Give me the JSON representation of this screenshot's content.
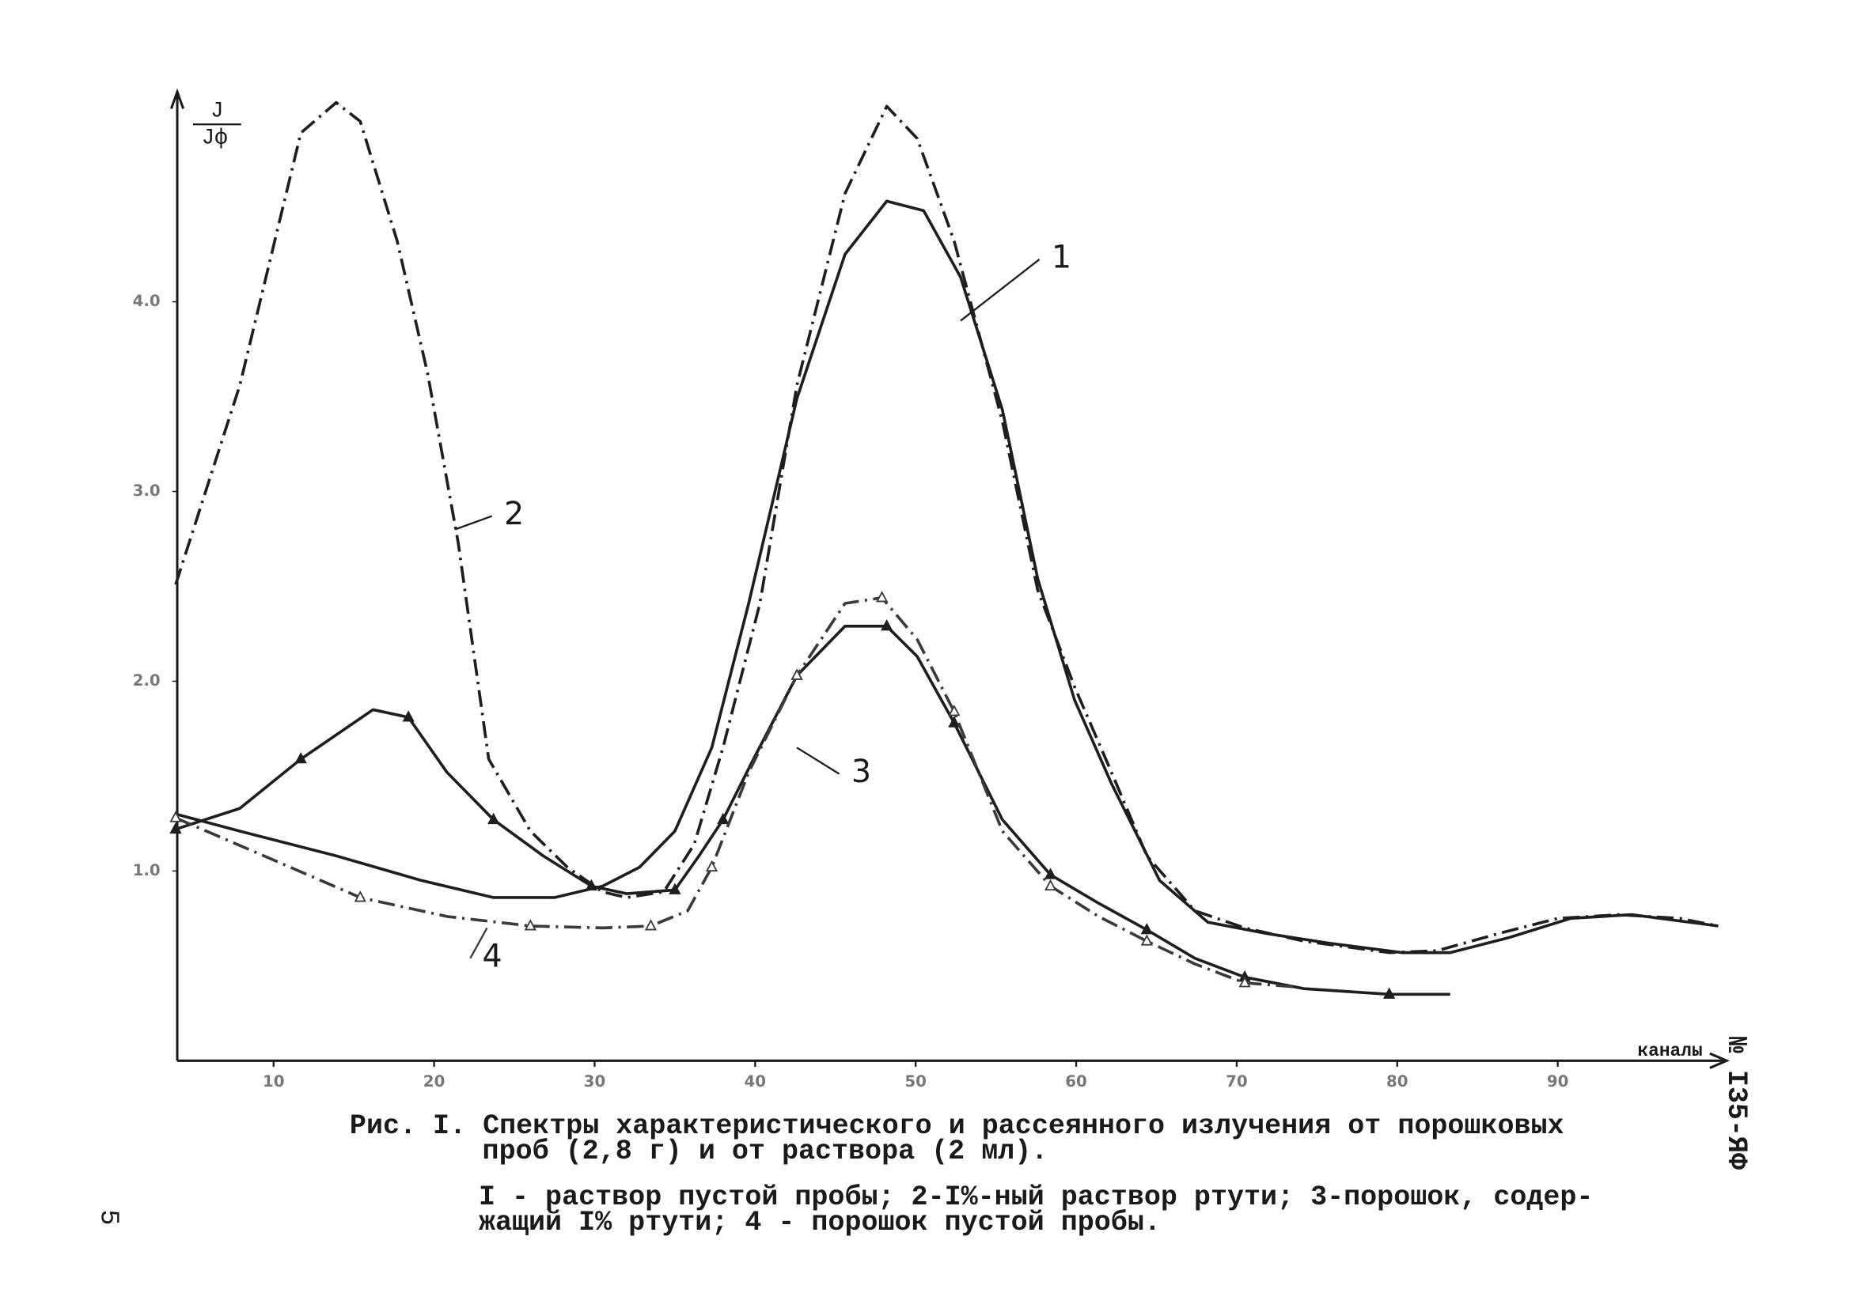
{
  "chart_data": {
    "type": "line",
    "y_label": {
      "numerator": "J",
      "denominator": "Jф"
    },
    "x_label": "каналы",
    "xlim": [
      4,
      100
    ],
    "ylim": [
      0,
      5.1
    ],
    "xticks": [
      10,
      20,
      30,
      40,
      50,
      60,
      70,
      80,
      90
    ],
    "yticks": [
      {
        "value": 1,
        "label": "1.0"
      },
      {
        "value": 2,
        "label": "2.0"
      },
      {
        "value": 3,
        "label": "3.0"
      },
      {
        "value": 4,
        "label": "4.0"
      }
    ],
    "grid": false,
    "series": [
      {
        "name": "1",
        "color": "#1e1e1e",
        "line_style": "solid",
        "marker": "none",
        "x": [
          3.9,
          7.9,
          13.9,
          19.2,
          23.7,
          27.5,
          30.5,
          32.8,
          35,
          37.3,
          39.6,
          42.6,
          45.6,
          48.2,
          50.5,
          52.8,
          55.4,
          57.6,
          59.9,
          62.2,
          65.2,
          68.2,
          71.9,
          75.7,
          80.3,
          83.3,
          87,
          90.8,
          94.6,
          100
        ],
        "values": [
          1.3,
          1.21,
          1.08,
          0.95,
          0.86,
          0.86,
          0.92,
          1.02,
          1.21,
          1.65,
          2.41,
          3.49,
          4.25,
          4.53,
          4.48,
          4.13,
          3.43,
          2.54,
          1.9,
          1.46,
          0.95,
          0.73,
          0.67,
          0.62,
          0.57,
          0.57,
          0.65,
          0.75,
          0.77,
          0.71
        ]
      },
      {
        "name": "2",
        "color": "#1e1e1e",
        "line_style": "dash-dot",
        "marker": "none",
        "x": [
          3.9,
          7.9,
          11.7,
          13.9,
          15.4,
          17.7,
          19.6,
          21.5,
          23.4,
          26,
          28.3,
          30.5,
          32,
          34.3,
          36.2,
          38,
          40.3,
          42.6,
          45.6,
          48.2,
          50.1,
          52.4,
          55.4,
          57.6,
          59.9,
          62.2,
          64.4,
          67.4,
          70.5,
          74.2,
          79.5,
          82.5,
          86.3,
          90,
          93.8,
          97.6,
          100
        ],
        "values": [
          2.51,
          3.56,
          4.89,
          5.05,
          4.95,
          4.32,
          3.62,
          2.73,
          1.59,
          1.21,
          1.02,
          0.89,
          0.86,
          0.89,
          1.14,
          1.65,
          2.41,
          3.56,
          4.57,
          5.03,
          4.86,
          4.32,
          3.37,
          2.48,
          1.97,
          1.52,
          1.08,
          0.79,
          0.7,
          0.63,
          0.57,
          0.58,
          0.67,
          0.75,
          0.77,
          0.75,
          0.71
        ]
      },
      {
        "name": "3",
        "color": "#1e1e1e",
        "line_style": "solid",
        "marker": "filled-triangle",
        "x": [
          3.9,
          7.9,
          11.7,
          16.2,
          18.4,
          20.8,
          23.7,
          26.8,
          29.8,
          32,
          35,
          36.5,
          38,
          39.9,
          42.6,
          45.6,
          48.2,
          50.1,
          52.4,
          55.4,
          58.4,
          61.4,
          64.4,
          67.4,
          70.5,
          74.2,
          79.5,
          83.3
        ],
        "values": [
          1.22,
          1.33,
          1.59,
          1.85,
          1.81,
          1.52,
          1.27,
          1.08,
          0.92,
          0.88,
          0.9,
          1.08,
          1.27,
          1.59,
          2.03,
          2.29,
          2.29,
          2.13,
          1.78,
          1.27,
          0.98,
          0.83,
          0.69,
          0.54,
          0.44,
          0.38,
          0.35,
          0.35
        ]
      },
      {
        "name": "4",
        "color": "#3a3a3a",
        "line_style": "dash-dot",
        "marker": "hollow-triangle",
        "x": [
          3.9,
          9.4,
          15.4,
          20.8,
          26,
          30.5,
          33.5,
          35.8,
          37.3,
          39.6,
          42.6,
          45.6,
          47.9,
          50.1,
          52.4,
          55.4,
          58.4,
          61.4,
          64.4,
          67.4,
          70.5,
          73.5
        ],
        "values": [
          1.28,
          1.08,
          0.86,
          0.76,
          0.71,
          0.7,
          0.71,
          0.79,
          1.02,
          1.52,
          2.03,
          2.41,
          2.44,
          2.22,
          1.84,
          1.21,
          0.92,
          0.76,
          0.63,
          0.51,
          0.41,
          0.39
        ]
      }
    ],
    "caption": {
      "title_lines": [
        "Рис. I. Спектры характеристического и рассеянного излучения от порошковых",
        "проб (2,8 г) и от раствора (2 мл)."
      ],
      "legend_lines": [
        "I - раствор пустой пробы; 2-I%-ный раствор ртути; 3-порошок, содер-",
        "жащий I% ртути; 4 - порошок пустой пробы."
      ]
    },
    "side_code": "№ I35-ЯФ",
    "page_number": "5"
  }
}
